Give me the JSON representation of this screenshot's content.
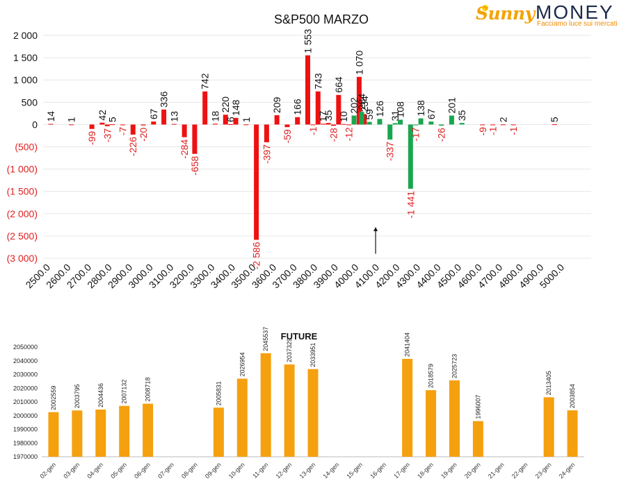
{
  "logo": {
    "brand_part1": "Sunny",
    "brand_part2": "MONEY",
    "tagline": "Facciamo luce sui mercati",
    "color_gold": "#f5a200",
    "color_navy": "#1c2b4a"
  },
  "chart_data": [
    {
      "type": "bar",
      "title": "S&P500 MARZO",
      "xlabel": "",
      "ylabel": "",
      "ylim": [
        -3000,
        2000
      ],
      "xlim": [
        2500,
        5000
      ],
      "grid": true,
      "y_ticks": [
        {
          "v": 2000,
          "label": "2 000"
        },
        {
          "v": 1500,
          "label": "1 500"
        },
        {
          "v": 1000,
          "label": "1 000"
        },
        {
          "v": 500,
          "label": "500"
        },
        {
          "v": 0,
          "label": "0"
        },
        {
          "v": -500,
          "label": "(500)"
        },
        {
          "v": -1000,
          "label": "(1 000)"
        },
        {
          "v": -1500,
          "label": "(1 500)"
        },
        {
          "v": -2000,
          "label": "(2 000)"
        },
        {
          "v": -2500,
          "label": "(2 500)"
        },
        {
          "v": -3000,
          "label": "(3 000)"
        }
      ],
      "x_tick_labels": [
        "2500.0",
        "2600.0",
        "2700.0",
        "2800.0",
        "2900.0",
        "3000.0",
        "3100.0",
        "3200.0",
        "3300.0",
        "3400.0",
        "3500.0",
        "3600.0",
        "3700.0",
        "3800.0",
        "3900.0",
        "4000.0",
        "4100.0",
        "4200.0",
        "4300.0",
        "4400.0",
        "4500.0",
        "4600.0",
        "4700.0",
        "4800.0",
        "4900.0",
        "5000.0"
      ],
      "colors": {
        "put": "#ee1111",
        "call": "#1aa64f",
        "label_neg": "#e02020",
        "label_pos": "#111111"
      },
      "series": [
        {
          "color": "put",
          "points": [
            {
              "x": 2500,
              "y": 14,
              "label": "14"
            },
            {
              "x": 2600,
              "y": 1,
              "label": "1"
            },
            {
              "x": 2700,
              "y": -99,
              "label": "-99"
            },
            {
              "x": 2750,
              "y": 42,
              "label": "42"
            },
            {
              "x": 2775,
              "y": -37,
              "label": "-37"
            },
            {
              "x": 2800,
              "y": 5,
              "label": "5"
            },
            {
              "x": 2850,
              "y": -7,
              "label": "-7"
            },
            {
              "x": 2900,
              "y": -226,
              "label": "-226"
            },
            {
              "x": 2950,
              "y": -20,
              "label": "-20"
            },
            {
              "x": 3000,
              "y": 67,
              "label": "67"
            },
            {
              "x": 3050,
              "y": 336,
              "label": "336"
            },
            {
              "x": 3100,
              "y": 13,
              "label": "13"
            },
            {
              "x": 3150,
              "y": -284,
              "label": "-284"
            },
            {
              "x": 3200,
              "y": -658,
              "label": "-658"
            },
            {
              "x": 3250,
              "y": 742,
              "label": "742"
            },
            {
              "x": 3300,
              "y": 18,
              "label": "18"
            },
            {
              "x": 3350,
              "y": 220,
              "label": "220"
            },
            {
              "x": 3375,
              "y": 6,
              "label": "6"
            },
            {
              "x": 3400,
              "y": 148,
              "label": "148"
            },
            {
              "x": 3450,
              "y": 1,
              "label": "1"
            },
            {
              "x": 3500,
              "y": -2586,
              "label": "-2 586"
            },
            {
              "x": 3550,
              "y": -397,
              "label": "-397"
            },
            {
              "x": 3600,
              "y": 209,
              "label": "209"
            },
            {
              "x": 3650,
              "y": -59,
              "label": "-59"
            },
            {
              "x": 3700,
              "y": 166,
              "label": "166"
            },
            {
              "x": 3750,
              "y": 1553,
              "label": "1 553"
            },
            {
              "x": 3775,
              "y": -1,
              "label": "-1"
            },
            {
              "x": 3800,
              "y": 743,
              "label": "743"
            },
            {
              "x": 3825,
              "y": 17,
              "label": "17"
            },
            {
              "x": 3850,
              "y": 35,
              "label": "35"
            },
            {
              "x": 3875,
              "y": -28,
              "label": "-28"
            },
            {
              "x": 3900,
              "y": 664,
              "label": "664"
            },
            {
              "x": 3925,
              "y": 10,
              "label": "10"
            },
            {
              "x": 3950,
              "y": -12,
              "label": "-12"
            },
            {
              "x": 4000,
              "y": 1070,
              "label": "1 070"
            },
            {
              "x": 4025,
              "y": 234,
              "label": "234"
            }
          ]
        },
        {
          "color": "call",
          "points": [
            {
              "x": 3975,
              "y": 202,
              "label": "202"
            },
            {
              "x": 4012,
              "y": 284,
              "label": "284"
            },
            {
              "x": 4050,
              "y": 59,
              "label": "59"
            },
            {
              "x": 4100,
              "y": 126,
              "label": "126"
            },
            {
              "x": 4150,
              "y": -337,
              "label": "-337"
            },
            {
              "x": 4175,
              "y": 31,
              "label": "31"
            },
            {
              "x": 4200,
              "y": 108,
              "label": "108"
            },
            {
              "x": 4250,
              "y": -1441,
              "label": "-1 441"
            },
            {
              "x": 4275,
              "y": -17,
              "label": "-17"
            },
            {
              "x": 4300,
              "y": 138,
              "label": "138"
            },
            {
              "x": 4350,
              "y": 67,
              "label": "67"
            },
            {
              "x": 4400,
              "y": -26,
              "label": "-26"
            },
            {
              "x": 4450,
              "y": 201,
              "label": "201"
            },
            {
              "x": 4500,
              "y": 35,
              "label": "35"
            }
          ]
        },
        {
          "color": "put",
          "points": [
            {
              "x": 4600,
              "y": -9,
              "label": "-9"
            },
            {
              "x": 4650,
              "y": -1,
              "label": "-1"
            },
            {
              "x": 4700,
              "y": 2,
              "label": "2"
            },
            {
              "x": 4750,
              "y": -1,
              "label": "-1"
            },
            {
              "x": 4950,
              "y": 5,
              "label": "5"
            }
          ]
        }
      ],
      "annotation": {
        "type": "arrow",
        "x": 4080,
        "y_from": -2900,
        "y_to": -2300
      }
    },
    {
      "type": "bar",
      "title": "FUTURE",
      "xlabel": "",
      "ylabel": "",
      "ylim": [
        1970000,
        2050000
      ],
      "color": "#f5a00f",
      "y_ticks": [
        {
          "v": 1970000,
          "label": "1970000"
        },
        {
          "v": 1980000,
          "label": "1980000"
        },
        {
          "v": 1990000,
          "label": "1990000"
        },
        {
          "v": 2000000,
          "label": "2000000"
        },
        {
          "v": 2010000,
          "label": "2010000"
        },
        {
          "v": 2020000,
          "label": "2020000"
        },
        {
          "v": 2030000,
          "label": "2030000"
        },
        {
          "v": 2040000,
          "label": "2040000"
        },
        {
          "v": 2050000,
          "label": "2050000"
        }
      ],
      "categories": [
        "02-gen",
        "03-gen",
        "04-gen",
        "05-gen",
        "06-gen",
        "07-gen",
        "08-gen",
        "09-gen",
        "10-gen",
        "11-gen",
        "12-gen",
        "13-gen",
        "14-gen",
        "15-gen",
        "16-gen",
        "17-gen",
        "18-gen",
        "19-gen",
        "20-gen",
        "21-gen",
        "22-gen",
        "23-gen",
        "24-gen"
      ],
      "values": [
        2002559,
        2003795,
        2004436,
        2007132,
        2008718,
        null,
        null,
        2005831,
        2026954,
        2045537,
        2037329,
        2033951,
        null,
        null,
        null,
        2041404,
        2018579,
        2025723,
        1996007,
        null,
        null,
        2013405,
        2003854
      ]
    }
  ]
}
